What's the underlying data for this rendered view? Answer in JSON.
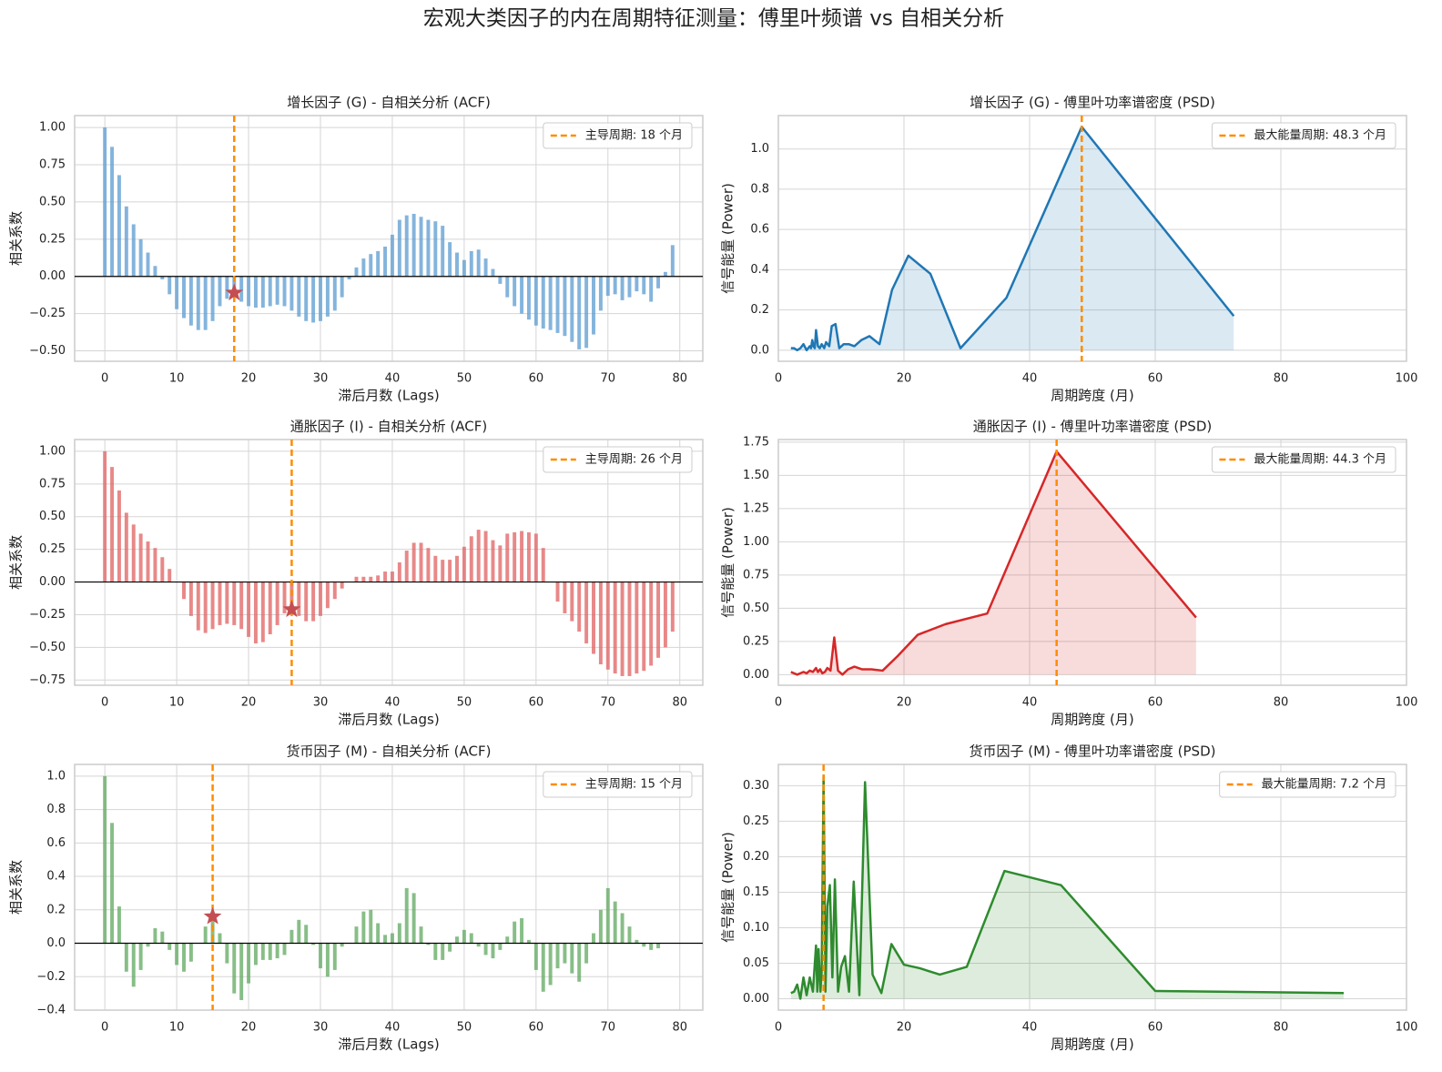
{
  "title": "宏观大类因子的内在周期特征测量：傅里叶频谱 vs 自相关分析",
  "chart_data": [
    {
      "type": "bar",
      "title": "增长因子 (G) - 自相关分析 (ACF)",
      "x_label": "滞后月数 (Lags)",
      "y_label": "相关系数",
      "color": "#5b9bd0",
      "marker_color": "#c44e52",
      "grid": true,
      "x": [
        0,
        1,
        2,
        3,
        4,
        5,
        6,
        7,
        8,
        9,
        10,
        11,
        12,
        13,
        14,
        15,
        16,
        17,
        18,
        19,
        20,
        21,
        22,
        23,
        24,
        25,
        26,
        27,
        28,
        29,
        30,
        31,
        32,
        33,
        34,
        35,
        36,
        37,
        38,
        39,
        40,
        41,
        42,
        43,
        44,
        45,
        46,
        47,
        48,
        49,
        50,
        51,
        52,
        53,
        54,
        55,
        56,
        57,
        58,
        59,
        60,
        61,
        62,
        63,
        64,
        65,
        66,
        67,
        68,
        69,
        70,
        71,
        72,
        73,
        74,
        75,
        76,
        77,
        78,
        79
      ],
      "values": [
        1.0,
        0.87,
        0.68,
        0.47,
        0.35,
        0.25,
        0.16,
        0.07,
        -0.02,
        -0.12,
        -0.22,
        -0.28,
        -0.33,
        -0.36,
        -0.36,
        -0.3,
        -0.2,
        -0.15,
        -0.11,
        -0.17,
        -0.2,
        -0.21,
        -0.21,
        -0.2,
        -0.19,
        -0.2,
        -0.23,
        -0.27,
        -0.3,
        -0.31,
        -0.3,
        -0.27,
        -0.23,
        -0.14,
        -0.02,
        0.06,
        0.12,
        0.15,
        0.17,
        0.2,
        0.28,
        0.38,
        0.41,
        0.42,
        0.4,
        0.38,
        0.37,
        0.34,
        0.23,
        0.16,
        0.11,
        0.17,
        0.18,
        0.12,
        0.05,
        -0.05,
        -0.14,
        -0.2,
        -0.25,
        -0.29,
        -0.33,
        -0.35,
        -0.36,
        -0.38,
        -0.4,
        -0.44,
        -0.49,
        -0.48,
        -0.39,
        -0.23,
        -0.13,
        -0.12,
        -0.16,
        -0.14,
        -0.1,
        -0.12,
        -0.17,
        -0.08,
        0.03,
        0.21
      ],
      "xlim": [
        -4.2,
        83.2
      ],
      "ylim": [
        -0.57,
        1.08
      ],
      "xticks": [
        0,
        10,
        20,
        30,
        40,
        50,
        60,
        70,
        80
      ],
      "yticks": [
        {
          "value": -0.5,
          "label": "−0.50"
        },
        {
          "value": -0.25,
          "label": "−0.25"
        },
        {
          "value": 0,
          "label": "0.00"
        },
        {
          "value": 0.25,
          "label": "0.25"
        },
        {
          "value": 0.5,
          "label": "0.50"
        },
        {
          "value": 0.75,
          "label": "0.75"
        },
        {
          "value": 1,
          "label": "1.00"
        }
      ],
      "vline": {
        "x": 18,
        "label": "主导周期: 18 个月",
        "color": "#ff8c00"
      }
    },
    {
      "type": "line",
      "title": "增长因子 (G) - 傅里叶功率谱密度 (PSD)",
      "x_label": "周期跨度 (月)",
      "y_label": "信号能量 (Power)",
      "color": "#1f77b4",
      "grid": true,
      "x": [
        2.0,
        2.5,
        3.0,
        3.5,
        4.0,
        4.5,
        5.0,
        5.2,
        5.4,
        5.6,
        5.8,
        6.0,
        6.3,
        6.6,
        6.9,
        7.3,
        7.6,
        8.1,
        8.5,
        9.1,
        9.7,
        10.4,
        11.2,
        12.1,
        13.2,
        14.5,
        16.1,
        18.1,
        20.7,
        24.2,
        29.0,
        36.3,
        48.3,
        72.5
      ],
      "values": [
        0.01,
        0.01,
        0.0,
        0.01,
        0.03,
        0.0,
        0.02,
        0.01,
        0.05,
        0.02,
        0.01,
        0.1,
        0.02,
        0.01,
        0.03,
        0.01,
        0.04,
        0.02,
        0.12,
        0.13,
        0.01,
        0.03,
        0.03,
        0.02,
        0.05,
        0.07,
        0.03,
        0.3,
        0.47,
        0.38,
        0.01,
        0.26,
        1.11,
        0.17
      ],
      "xlim": [
        0,
        100
      ],
      "ylim": [
        -0.055,
        1.166
      ],
      "xticks": [
        0,
        20,
        40,
        60,
        80,
        100
      ],
      "yticks": [
        {
          "value": 0,
          "label": "0.0"
        },
        {
          "value": 0.2,
          "label": "0.2"
        },
        {
          "value": 0.4,
          "label": "0.4"
        },
        {
          "value": 0.6,
          "label": "0.6"
        },
        {
          "value": 0.8,
          "label": "0.8"
        },
        {
          "value": 1,
          "label": "1.0"
        }
      ],
      "vline": {
        "x": 48.3,
        "label": "最大能量周期: 48.3 个月",
        "color": "#ff8c00"
      }
    },
    {
      "type": "bar",
      "title": "通胀因子 (I) - 自相关分析 (ACF)",
      "x_label": "滞后月数 (Lags)",
      "y_label": "相关系数",
      "color": "#e06060",
      "marker_color": "#c44e52",
      "grid": true,
      "x": [
        0,
        1,
        2,
        3,
        4,
        5,
        6,
        7,
        8,
        9,
        10,
        11,
        12,
        13,
        14,
        15,
        16,
        17,
        18,
        19,
        20,
        21,
        22,
        23,
        24,
        25,
        26,
        27,
        28,
        29,
        30,
        31,
        32,
        33,
        34,
        35,
        36,
        37,
        38,
        39,
        40,
        41,
        42,
        43,
        44,
        45,
        46,
        47,
        48,
        49,
        50,
        51,
        52,
        53,
        54,
        55,
        56,
        57,
        58,
        59,
        60,
        61,
        62,
        63,
        64,
        65,
        66,
        67,
        68,
        69,
        70,
        71,
        72,
        73,
        74,
        75,
        76,
        77,
        78,
        79
      ],
      "values": [
        1.0,
        0.88,
        0.7,
        0.53,
        0.44,
        0.37,
        0.31,
        0.26,
        0.19,
        0.1,
        0.0,
        -0.13,
        -0.26,
        -0.37,
        -0.39,
        -0.36,
        -0.33,
        -0.32,
        -0.33,
        -0.36,
        -0.42,
        -0.47,
        -0.46,
        -0.4,
        -0.33,
        -0.24,
        -0.21,
        -0.26,
        -0.3,
        -0.3,
        -0.26,
        -0.2,
        -0.13,
        -0.05,
        0.0,
        0.04,
        0.04,
        0.04,
        0.05,
        0.08,
        0.08,
        0.15,
        0.24,
        0.3,
        0.3,
        0.26,
        0.2,
        0.17,
        0.17,
        0.2,
        0.27,
        0.35,
        0.4,
        0.39,
        0.32,
        0.28,
        0.37,
        0.38,
        0.39,
        0.38,
        0.37,
        0.26,
        0.0,
        -0.15,
        -0.24,
        -0.3,
        -0.38,
        -0.47,
        -0.55,
        -0.63,
        -0.67,
        -0.7,
        -0.72,
        -0.72,
        -0.7,
        -0.68,
        -0.64,
        -0.58,
        -0.5,
        -0.38
      ],
      "xlim": [
        -4.2,
        83.2
      ],
      "ylim": [
        -0.79,
        1.09
      ],
      "xticks": [
        0,
        10,
        20,
        30,
        40,
        50,
        60,
        70,
        80
      ],
      "yticks": [
        {
          "value": -0.75,
          "label": "−0.75"
        },
        {
          "value": -0.5,
          "label": "−0.50"
        },
        {
          "value": -0.25,
          "label": "−0.25"
        },
        {
          "value": 0,
          "label": "0.00"
        },
        {
          "value": 0.25,
          "label": "0.25"
        },
        {
          "value": 0.5,
          "label": "0.50"
        },
        {
          "value": 0.75,
          "label": "0.75"
        },
        {
          "value": 1,
          "label": "1.00"
        }
      ],
      "vline": {
        "x": 26,
        "label": "主导周期: 26 个月",
        "color": "#ff8c00"
      }
    },
    {
      "type": "line",
      "title": "通胀因子 (I) - 傅里叶功率谱密度 (PSD)",
      "x_label": "周期跨度 (月)",
      "y_label": "信号能量 (Power)",
      "color": "#d62728",
      "grid": true,
      "x": [
        2.0,
        2.5,
        3.0,
        3.5,
        4.0,
        4.5,
        5.0,
        5.5,
        6.0,
        6.3,
        6.65,
        7.0,
        7.4,
        7.8,
        8.3,
        8.9,
        9.5,
        10.2,
        11.1,
        12.1,
        13.3,
        14.8,
        16.6,
        19.0,
        22.2,
        26.6,
        33.25,
        44.3,
        66.5
      ],
      "values": [
        0.02,
        0.01,
        0.0,
        0.01,
        0.02,
        0.01,
        0.03,
        0.02,
        0.05,
        0.02,
        0.04,
        0.01,
        0.02,
        0.05,
        0.03,
        0.28,
        0.03,
        0.0,
        0.04,
        0.06,
        0.04,
        0.04,
        0.03,
        0.14,
        0.3,
        0.38,
        0.46,
        1.68,
        0.43
      ],
      "xlim": [
        0,
        100
      ],
      "ylim": [
        -0.08,
        1.77
      ],
      "xticks": [
        0,
        20,
        40,
        60,
        80,
        100
      ],
      "yticks": [
        {
          "value": 0,
          "label": "0.00"
        },
        {
          "value": 0.25,
          "label": "0.25"
        },
        {
          "value": 0.5,
          "label": "0.50"
        },
        {
          "value": 0.75,
          "label": "0.75"
        },
        {
          "value": 1,
          "label": "1.00"
        },
        {
          "value": 1.25,
          "label": "1.25"
        },
        {
          "value": 1.5,
          "label": "1.50"
        },
        {
          "value": 1.75,
          "label": "1.75"
        }
      ],
      "vline": {
        "x": 44.3,
        "label": "最大能量周期: 44.3 个月",
        "color": "#ff8c00"
      }
    },
    {
      "type": "bar",
      "title": "货币因子 (M) - 自相关分析 (ACF)",
      "x_label": "滞后月数 (Lags)",
      "y_label": "相关系数",
      "color": "#5fa85f",
      "marker_color": "#c44e52",
      "grid": true,
      "x": [
        0,
        1,
        2,
        3,
        4,
        5,
        6,
        7,
        8,
        9,
        10,
        11,
        12,
        13,
        14,
        15,
        16,
        17,
        18,
        19,
        20,
        21,
        22,
        23,
        24,
        25,
        26,
        27,
        28,
        29,
        30,
        31,
        32,
        33,
        34,
        35,
        36,
        37,
        38,
        39,
        40,
        41,
        42,
        43,
        44,
        45,
        46,
        47,
        48,
        49,
        50,
        51,
        52,
        53,
        54,
        55,
        56,
        57,
        58,
        59,
        60,
        61,
        62,
        63,
        64,
        65,
        66,
        67,
        68,
        69,
        70,
        71,
        72,
        73,
        74,
        75,
        76,
        77,
        78,
        79
      ],
      "values": [
        1.0,
        0.72,
        0.22,
        -0.17,
        -0.26,
        -0.16,
        -0.02,
        0.09,
        0.07,
        -0.04,
        -0.13,
        -0.17,
        -0.11,
        0.0,
        0.1,
        0.16,
        0.06,
        -0.12,
        -0.3,
        -0.34,
        -0.24,
        -0.13,
        -0.1,
        -0.1,
        -0.09,
        -0.07,
        0.08,
        0.14,
        0.11,
        -0.01,
        -0.15,
        -0.2,
        -0.16,
        -0.02,
        0.0,
        0.1,
        0.19,
        0.2,
        0.12,
        0.05,
        0.06,
        0.12,
        0.33,
        0.3,
        0.1,
        -0.01,
        -0.1,
        -0.1,
        -0.05,
        0.04,
        0.08,
        0.06,
        -0.02,
        -0.07,
        -0.09,
        -0.04,
        0.04,
        0.13,
        0.15,
        0.02,
        -0.16,
        -0.29,
        -0.25,
        -0.15,
        -0.12,
        -0.18,
        -0.23,
        -0.12,
        0.06,
        0.2,
        0.33,
        0.25,
        0.18,
        0.1,
        0.02,
        -0.02,
        -0.04,
        -0.03,
        0.0,
        0.0
      ],
      "xlim": [
        -4.2,
        83.2
      ],
      "ylim": [
        -0.4,
        1.07
      ],
      "xticks": [
        0,
        10,
        20,
        30,
        40,
        50,
        60,
        70,
        80
      ],
      "yticks": [
        {
          "value": -0.4,
          "label": "−0.4"
        },
        {
          "value": -0.2,
          "label": "−0.2"
        },
        {
          "value": 0,
          "label": "0.0"
        },
        {
          "value": 0.2,
          "label": "0.2"
        },
        {
          "value": 0.4,
          "label": "0.4"
        },
        {
          "value": 0.6,
          "label": "0.6"
        },
        {
          "value": 0.8,
          "label": "0.8"
        },
        {
          "value": 1,
          "label": "1.0"
        }
      ],
      "vline": {
        "x": 15,
        "label": "主导周期: 15 个月",
        "color": "#ff8c00"
      }
    },
    {
      "type": "line",
      "title": "货币因子 (M) - 傅里叶功率谱密度 (PSD)",
      "x_label": "周期跨度 (月)",
      "y_label": "信号能量 (Power)",
      "color": "#2e8b2e",
      "grid": true,
      "x": [
        2.0,
        2.5,
        3.0,
        3.5,
        4.0,
        4.5,
        5.0,
        5.5,
        6.0,
        6.2,
        6.4,
        6.7,
        6.9,
        7.2,
        7.5,
        7.8,
        8.2,
        8.6,
        9.0,
        9.5,
        10.0,
        10.6,
        11.25,
        12.0,
        12.9,
        13.8,
        15.0,
        16.4,
        18.0,
        20.0,
        22.5,
        25.7,
        30.0,
        36.0,
        45.0,
        60.0,
        90.0
      ],
      "values": [
        0.008,
        0.01,
        0.02,
        0.0,
        0.03,
        0.005,
        0.03,
        0.01,
        0.075,
        0.01,
        0.07,
        0.01,
        0.04,
        0.314,
        0.01,
        0.13,
        0.16,
        0.03,
        0.168,
        0.01,
        0.045,
        0.06,
        0.01,
        0.165,
        0.005,
        0.305,
        0.034,
        0.008,
        0.077,
        0.048,
        0.043,
        0.034,
        0.045,
        0.18,
        0.16,
        0.011,
        0.008
      ],
      "xlim": [
        0,
        100
      ],
      "ylim": [
        -0.016,
        0.33
      ],
      "xticks": [
        0,
        20,
        40,
        60,
        80,
        100
      ],
      "yticks": [
        {
          "value": 0,
          "label": "0.00"
        },
        {
          "value": 0.05,
          "label": "0.05"
        },
        {
          "value": 0.1,
          "label": "0.10"
        },
        {
          "value": 0.15,
          "label": "0.15"
        },
        {
          "value": 0.2,
          "label": "0.20"
        },
        {
          "value": 0.25,
          "label": "0.25"
        },
        {
          "value": 0.3,
          "label": "0.30"
        }
      ],
      "vline": {
        "x": 7.2,
        "label": "最大能量周期: 7.2 个月",
        "color": "#ff8c00"
      }
    }
  ]
}
